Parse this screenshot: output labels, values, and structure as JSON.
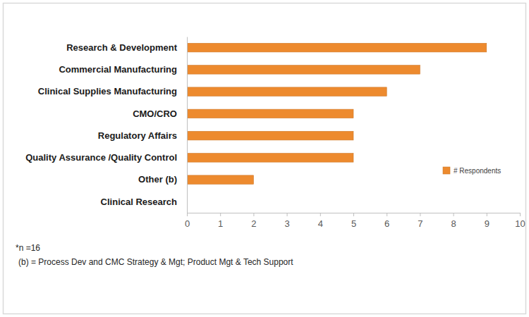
{
  "chart_data": {
    "type": "bar",
    "orientation": "horizontal",
    "categories": [
      "Research & Development",
      "Commercial Manufacturing",
      "Clinical Supplies Manufacturing",
      "CMO/CRO",
      "Regulatory Affairs",
      "Quality Assurance /Quality Control",
      "Other (b)",
      "Clinical Research"
    ],
    "series": [
      {
        "name": "# Respondents",
        "color": "#ed8a2e",
        "values": [
          9,
          7,
          6,
          5,
          5,
          5,
          2,
          0
        ]
      }
    ],
    "xlim": [
      0,
      10
    ],
    "xticks": [
      0,
      1,
      2,
      3,
      4,
      5,
      6,
      7,
      8,
      9,
      10
    ],
    "grid": false,
    "legend": "right",
    "annotations": [
      "*n =16",
      "(b) = Process Dev and CMC Strategy & Mgt; Product Mgt & Tech Support"
    ]
  }
}
